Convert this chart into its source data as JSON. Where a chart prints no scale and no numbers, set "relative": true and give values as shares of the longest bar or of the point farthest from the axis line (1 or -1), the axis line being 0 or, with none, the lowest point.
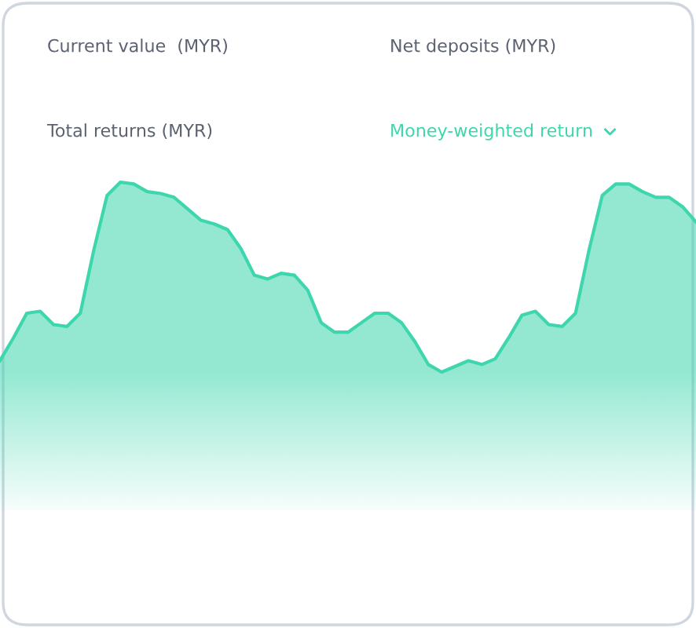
{
  "chart_data": {
    "type": "area",
    "relative": true,
    "annotations": [
      "Current value  (MYR)",
      "Net deposits (MYR)",
      "Total returns (MYR)",
      "Money-weighted return"
    ],
    "categories": [
      null,
      null,
      null,
      null,
      null,
      null,
      null,
      null,
      null,
      null,
      null,
      null,
      null,
      null,
      null,
      null,
      null,
      null,
      null,
      null,
      null,
      null,
      null,
      null,
      null,
      null,
      null,
      null,
      null,
      null,
      null,
      null,
      null,
      null,
      null,
      null,
      null,
      null,
      null,
      null,
      null,
      null,
      null,
      null,
      null,
      null,
      null,
      null,
      null,
      null,
      null,
      null,
      null
    ],
    "series": [
      {
        "color": "#3dd6ad",
        "values": [
          0.06,
          0.18,
          0.31,
          0.32,
          0.25,
          0.24,
          0.31,
          0.64,
          0.93,
          1.0,
          0.99,
          0.95,
          0.94,
          0.92,
          0.86,
          0.8,
          0.78,
          0.75,
          0.65,
          0.51,
          0.49,
          0.52,
          0.51,
          0.43,
          0.26,
          0.21,
          0.21,
          0.26,
          0.31,
          0.31,
          0.26,
          0.16,
          0.04,
          0,
          0.03,
          0.06,
          0.04,
          0.07,
          0.18,
          0.3,
          0.32,
          0.25,
          0.24,
          0.31,
          0.64,
          0.93,
          0.99,
          0.99,
          0.95,
          0.92,
          0.92,
          0.87,
          0.79
        ]
      }
    ]
  }
}
